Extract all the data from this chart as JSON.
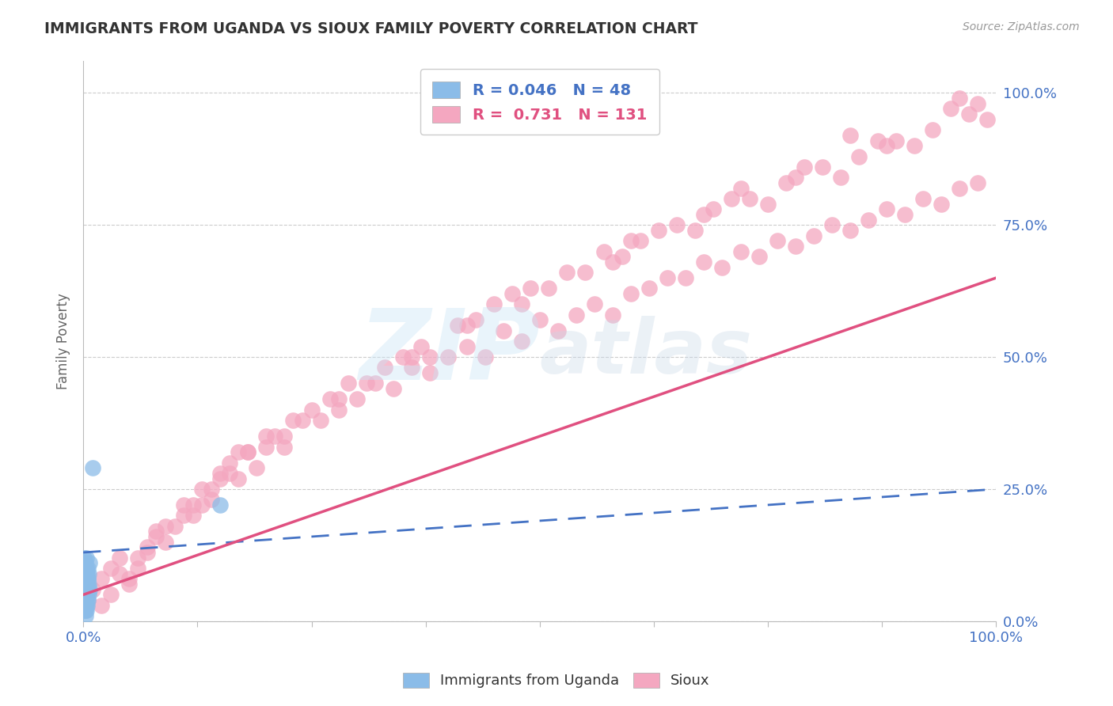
{
  "title": "IMMIGRANTS FROM UGANDA VS SIOUX FAMILY POVERTY CORRELATION CHART",
  "source": "Source: ZipAtlas.com",
  "ylabel": "Family Poverty",
  "xlim": [
    0,
    1.0
  ],
  "ylim": [
    0,
    1.05
  ],
  "x_tick_labels": [
    "0.0%",
    "100.0%"
  ],
  "y_tick_labels": [
    "0.0%",
    "25.0%",
    "50.0%",
    "75.0%",
    "100.0%"
  ],
  "y_tick_values": [
    0.0,
    0.25,
    0.5,
    0.75,
    1.0
  ],
  "legend_label1": "Immigrants from Uganda",
  "legend_label2": "Sioux",
  "R1": 0.046,
  "N1": 48,
  "R2": 0.731,
  "N2": 131,
  "color_blue": "#8BBCE8",
  "color_pink": "#F4A7C0",
  "color_blue_text": "#4472C4",
  "color_pink_text": "#E05080",
  "background_color": "#ffffff",
  "grid_color": "#cccccc",
  "uganda_x": [
    0.001,
    0.001,
    0.001,
    0.001,
    0.001,
    0.002,
    0.002,
    0.002,
    0.002,
    0.002,
    0.002,
    0.002,
    0.002,
    0.003,
    0.003,
    0.003,
    0.003,
    0.003,
    0.003,
    0.004,
    0.004,
    0.004,
    0.004,
    0.004,
    0.005,
    0.005,
    0.005,
    0.006,
    0.006,
    0.007,
    0.001,
    0.001,
    0.001,
    0.002,
    0.002,
    0.002,
    0.003,
    0.003,
    0.003,
    0.003,
    0.004,
    0.004,
    0.005,
    0.005,
    0.006,
    0.007,
    0.01,
    0.15
  ],
  "uganda_y": [
    0.02,
    0.03,
    0.04,
    0.05,
    0.06,
    0.01,
    0.02,
    0.03,
    0.04,
    0.05,
    0.06,
    0.07,
    0.08,
    0.02,
    0.03,
    0.05,
    0.06,
    0.07,
    0.09,
    0.03,
    0.04,
    0.05,
    0.07,
    0.08,
    0.04,
    0.06,
    0.08,
    0.05,
    0.07,
    0.06,
    0.1,
    0.11,
    0.12,
    0.09,
    0.1,
    0.11,
    0.08,
    0.09,
    0.1,
    0.12,
    0.07,
    0.09,
    0.08,
    0.1,
    0.09,
    0.11,
    0.29,
    0.22
  ],
  "sioux_x": [
    0.005,
    0.01,
    0.02,
    0.03,
    0.04,
    0.05,
    0.06,
    0.07,
    0.08,
    0.09,
    0.1,
    0.11,
    0.12,
    0.13,
    0.14,
    0.15,
    0.16,
    0.17,
    0.18,
    0.19,
    0.2,
    0.22,
    0.24,
    0.26,
    0.28,
    0.3,
    0.32,
    0.34,
    0.36,
    0.38,
    0.4,
    0.42,
    0.44,
    0.46,
    0.48,
    0.5,
    0.52,
    0.54,
    0.56,
    0.58,
    0.6,
    0.62,
    0.64,
    0.66,
    0.68,
    0.7,
    0.72,
    0.74,
    0.76,
    0.78,
    0.8,
    0.82,
    0.84,
    0.86,
    0.88,
    0.9,
    0.92,
    0.94,
    0.96,
    0.98,
    0.03,
    0.06,
    0.09,
    0.12,
    0.15,
    0.18,
    0.21,
    0.25,
    0.29,
    0.33,
    0.37,
    0.41,
    0.45,
    0.49,
    0.53,
    0.57,
    0.61,
    0.65,
    0.69,
    0.73,
    0.77,
    0.81,
    0.85,
    0.89,
    0.93,
    0.97,
    0.04,
    0.08,
    0.14,
    0.2,
    0.27,
    0.35,
    0.43,
    0.51,
    0.59,
    0.67,
    0.75,
    0.83,
    0.91,
    0.99,
    0.02,
    0.07,
    0.13,
    0.22,
    0.31,
    0.42,
    0.55,
    0.63,
    0.71,
    0.79,
    0.87,
    0.95,
    0.05,
    0.16,
    0.28,
    0.38,
    0.48,
    0.58,
    0.68,
    0.78,
    0.88,
    0.98,
    0.11,
    0.23,
    0.36,
    0.47,
    0.6,
    0.72,
    0.84,
    0.96,
    0.17
  ],
  "sioux_y": [
    0.04,
    0.06,
    0.08,
    0.1,
    0.12,
    0.07,
    0.1,
    0.14,
    0.17,
    0.15,
    0.18,
    0.22,
    0.2,
    0.25,
    0.23,
    0.28,
    0.3,
    0.27,
    0.32,
    0.29,
    0.35,
    0.33,
    0.38,
    0.38,
    0.4,
    0.42,
    0.45,
    0.44,
    0.48,
    0.47,
    0.5,
    0.52,
    0.5,
    0.55,
    0.53,
    0.57,
    0.55,
    0.58,
    0.6,
    0.58,
    0.62,
    0.63,
    0.65,
    0.65,
    0.68,
    0.67,
    0.7,
    0.69,
    0.72,
    0.71,
    0.73,
    0.75,
    0.74,
    0.76,
    0.78,
    0.77,
    0.8,
    0.79,
    0.82,
    0.83,
    0.05,
    0.12,
    0.18,
    0.22,
    0.27,
    0.32,
    0.35,
    0.4,
    0.45,
    0.48,
    0.52,
    0.56,
    0.6,
    0.63,
    0.66,
    0.7,
    0.72,
    0.75,
    0.78,
    0.8,
    0.83,
    0.86,
    0.88,
    0.91,
    0.93,
    0.96,
    0.09,
    0.16,
    0.25,
    0.33,
    0.42,
    0.5,
    0.57,
    0.63,
    0.69,
    0.74,
    0.79,
    0.84,
    0.9,
    0.95,
    0.03,
    0.13,
    0.22,
    0.35,
    0.45,
    0.56,
    0.66,
    0.74,
    0.8,
    0.86,
    0.91,
    0.97,
    0.08,
    0.28,
    0.42,
    0.5,
    0.6,
    0.68,
    0.77,
    0.84,
    0.9,
    0.98,
    0.2,
    0.38,
    0.5,
    0.62,
    0.72,
    0.82,
    0.92,
    0.99,
    0.32
  ]
}
